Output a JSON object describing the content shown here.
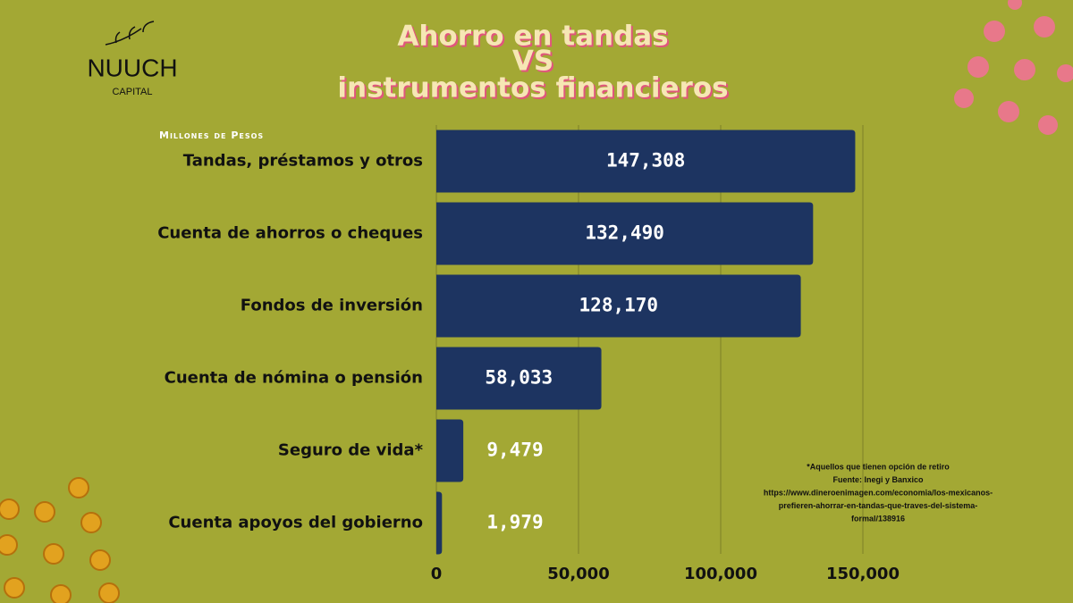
{
  "logo": {
    "name": "NUUCH",
    "tagline": "CAPITAL"
  },
  "chart_data": {
    "type": "bar",
    "orientation": "horizontal",
    "title": [
      "Ahorro en tandas",
      "VS",
      "instrumentos financieros"
    ],
    "unit_label": "Millones de Pesos",
    "categories": [
      "Tandas, préstamos y otros",
      "Cuenta de ahorros o cheques",
      "Fondos de inversión",
      "Cuenta de nómina o pensión",
      "Seguro de vida*",
      "Cuenta apoyos del gobierno"
    ],
    "values": [
      147308,
      132490,
      128170,
      58033,
      9479,
      1979
    ],
    "value_labels": [
      "147,308",
      "132,490",
      "128,170",
      "58,033",
      "9,479",
      "1,979"
    ],
    "color": "#1d3461",
    "xlim": [
      0,
      150000
    ],
    "xticks": [
      0,
      {
        "value": 50000,
        "label": "50,000"
      },
      {
        "value": 100000,
        "label": "100,000"
      },
      {
        "value": 150000,
        "label": "150,000"
      }
    ],
    "grid": true,
    "notes": [
      "*Aquellos que tienen opción de retiro",
      "Fuente: Inegi y Banxico",
      "https://www.dineroenimagen.com/economia/los-mexicanos-",
      "prefieren-ahorrar-en-tandas-que-traves-del-sistema-",
      "formal/138916"
    ]
  }
}
